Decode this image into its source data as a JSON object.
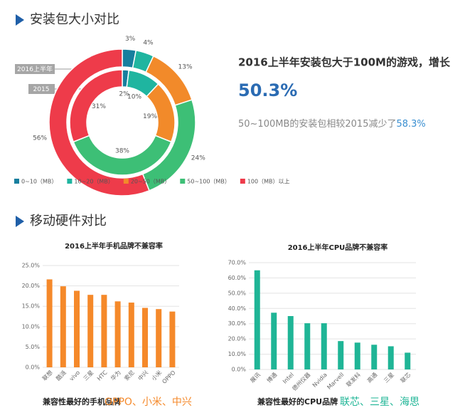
{
  "section1_title": "安装包大小对比",
  "section2_title": "移动硬件对比",
  "highlight": {
    "headline": "2016上半年安装包大于100M的游戏，增长",
    "big_value": "50.3%",
    "note": "50~100MB的安装包相较2015减少了",
    "note_value": "58.3%"
  },
  "footers": [
    {
      "label": "兼容性最好的手机品牌",
      "value": "OPPO、小米、中兴"
    },
    {
      "label": "兼容性最好的CPU品牌",
      "value": "联芯、三星、海思"
    }
  ],
  "chart_data": [
    {
      "type": "donut",
      "categories": [
        "0~10（MB）",
        "10~20（MB）",
        "20~50（MB）",
        "50~100（MB）",
        "100（MB）以上"
      ],
      "colors": [
        "#177f9e",
        "#1fb5a0",
        "#f28a2a",
        "#3dbf76",
        "#ee3b4a"
      ],
      "series": [
        {
          "name": "2016上半年",
          "values": [
            3,
            4,
            13,
            24,
            56
          ],
          "value_labels": [
            "3%",
            "4%",
            "13%",
            "24%",
            "56%"
          ]
        },
        {
          "name": "2015",
          "values": [
            2,
            10,
            19,
            38,
            31
          ],
          "value_labels": [
            "2%",
            "10%",
            "19%",
            "38%",
            "31%"
          ]
        }
      ]
    },
    {
      "type": "bar",
      "title": "2016上半年手机品牌不兼容率",
      "categories": [
        "联想",
        "酷派",
        "vivo",
        "三星",
        "HTC",
        "华为",
        "索尼",
        "中兴",
        "小米",
        "OPPO"
      ],
      "values": [
        21.6,
        19.9,
        18.8,
        17.8,
        17.8,
        16.2,
        15.9,
        14.6,
        14.3,
        13.7
      ],
      "color": "#f5892a",
      "ylim": [
        0,
        25
      ],
      "yticks": [
        {
          "value": 0,
          "label": "0.0%"
        },
        {
          "value": 5,
          "label": "5.0%"
        },
        {
          "value": 10,
          "label": "10.0%"
        },
        {
          "value": 15,
          "label": "15.0%"
        },
        {
          "value": 20,
          "label": "20.0%"
        },
        {
          "value": 25,
          "label": "25.0%"
        }
      ],
      "grid": true
    },
    {
      "type": "bar",
      "title": "2016上半年CPU品牌不兼容率",
      "categories": [
        "展讯",
        "博通",
        "Intel",
        "德州仪器",
        "Nvidia",
        "Marvell",
        "联发科",
        "高通",
        "三星",
        "联芯"
      ],
      "values": [
        65.0,
        37.2,
        35.0,
        30.3,
        30.3,
        18.6,
        17.6,
        16.2,
        15.2,
        11.0
      ],
      "color": "#1fb596",
      "ylim": [
        0,
        70
      ],
      "yticks": [
        {
          "value": 0,
          "label": "0.0%"
        },
        {
          "value": 10,
          "label": "10.0%"
        },
        {
          "value": 20,
          "label": "20.0%"
        },
        {
          "value": 30,
          "label": "30.0%"
        },
        {
          "value": 40,
          "label": "40.0%"
        },
        {
          "value": 50,
          "label": "50.0%"
        },
        {
          "value": 60,
          "label": "60.0%"
        },
        {
          "value": 70,
          "label": "70.0%"
        }
      ],
      "grid": true
    }
  ]
}
